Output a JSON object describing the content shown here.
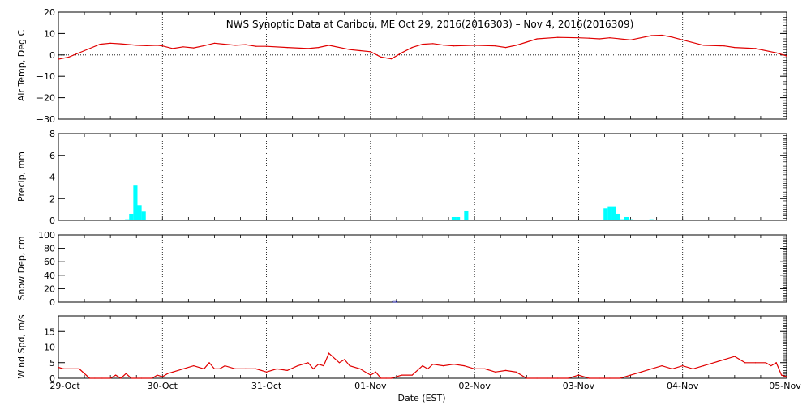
{
  "chart_data": [
    {
      "type": "line",
      "title": "NWS Synoptic Data at Caribou, ME   Oct 29, 2016(2016303) – Nov  4, 2016(2016309)",
      "ylabel": "Air Temp, Deg C",
      "ylim": [
        -30,
        20
      ],
      "yticks": [
        "20",
        "10",
        "0",
        "−10",
        "−20",
        "−30"
      ],
      "xlim": [
        0,
        7
      ],
      "grid": true,
      "x": [
        0,
        0.1,
        0.25,
        0.4,
        0.5,
        0.6,
        0.75,
        0.85,
        0.95,
        1.0,
        1.1,
        1.2,
        1.3,
        1.4,
        1.5,
        1.6,
        1.7,
        1.8,
        1.9,
        2.0,
        2.2,
        2.4,
        2.5,
        2.6,
        2.8,
        2.9,
        3.0,
        3.1,
        3.2,
        3.3,
        3.4,
        3.5,
        3.6,
        3.7,
        3.8,
        4.0,
        4.2,
        4.3,
        4.4,
        4.5,
        4.6,
        4.8,
        5.0,
        5.1,
        5.2,
        5.3,
        5.5,
        5.7,
        5.8,
        5.9,
        6.0,
        6.2,
        6.4,
        6.5,
        6.7,
        6.9,
        7.0
      ],
      "series": [
        {
          "color": "#e00000",
          "values": [
            -2,
            -1,
            2,
            5,
            5.5,
            5.2,
            4.5,
            4.3,
            4.5,
            4.2,
            3.0,
            3.8,
            3.3,
            4.3,
            5.5,
            5.0,
            4.5,
            4.8,
            4.0,
            4.0,
            3.5,
            3.0,
            3.5,
            4.5,
            2.5,
            2.0,
            1.5,
            -1.0,
            -1.8,
            1.0,
            3.5,
            5.0,
            5.3,
            4.6,
            4.2,
            4.5,
            4.2,
            3.5,
            4.5,
            6.0,
            7.5,
            8.2,
            8.0,
            7.8,
            7.5,
            8.0,
            7.0,
            9.0,
            9.2,
            8.3,
            7.0,
            4.5,
            4.2,
            3.5,
            3.0,
            1.0,
            -0.5
          ]
        }
      ]
    },
    {
      "type": "bar",
      "ylabel": "Precip, mm",
      "ylim": [
        0,
        8
      ],
      "yticks": [
        "8",
        "6",
        "4",
        "2",
        "0"
      ],
      "xlim": [
        0,
        7
      ],
      "grid": true,
      "bar_width": 0.04,
      "x": [
        0.66,
        0.7,
        0.74,
        0.78,
        0.82,
        3.8,
        3.84,
        3.92,
        5.26,
        5.3,
        5.34,
        5.38,
        5.42,
        5.46,
        5.5,
        5.54,
        5.58,
        5.62,
        5.66,
        5.7
      ],
      "series": [
        {
          "color": "#00ffff",
          "values": [
            0.1,
            0.6,
            3.2,
            1.4,
            0.8,
            0.3,
            0.3,
            0.9,
            1.1,
            1.3,
            1.3,
            0.6,
            0.1,
            0.3,
            0.1,
            0,
            0,
            0,
            0,
            0.1
          ]
        }
      ]
    },
    {
      "type": "bar",
      "ylabel": "Snow Dep, cm",
      "ylim": [
        0,
        100
      ],
      "yticks": [
        "100",
        "80",
        "60",
        "40",
        "20",
        "0"
      ],
      "xlim": [
        0,
        7
      ],
      "grid": true,
      "bar_width": 0.035,
      "x": [
        3.23
      ],
      "series": [
        {
          "color": "#00008b",
          "values": [
            2
          ]
        }
      ]
    },
    {
      "type": "line",
      "ylabel": "Wind Spd, m/s",
      "xlabel": "Date (EST)",
      "ylim": [
        0,
        20
      ],
      "yticks": [
        "15",
        "10",
        "5",
        "0"
      ],
      "xlim": [
        0,
        7
      ],
      "xticks": [
        "29-Oct",
        "30-Oct",
        "31-Oct",
        "01-Nov",
        "02-Nov",
        "03-Nov",
        "04-Nov",
        "05-Nov"
      ],
      "grid": true,
      "x": [
        0,
        0.05,
        0.2,
        0.3,
        0.35,
        0.42,
        0.5,
        0.55,
        0.6,
        0.65,
        0.7,
        0.8,
        0.9,
        0.95,
        1.0,
        1.05,
        1.1,
        1.2,
        1.3,
        1.4,
        1.45,
        1.5,
        1.55,
        1.6,
        1.7,
        1.8,
        1.9,
        2.0,
        2.1,
        2.2,
        2.3,
        2.4,
        2.45,
        2.5,
        2.55,
        2.6,
        2.7,
        2.75,
        2.8,
        2.9,
        3.0,
        3.05,
        3.1,
        3.15,
        3.2,
        3.3,
        3.4,
        3.5,
        3.55,
        3.6,
        3.7,
        3.8,
        3.9,
        4.0,
        4.1,
        4.2,
        4.3,
        4.4,
        4.5,
        4.6,
        4.7,
        4.8,
        4.9,
        5.0,
        5.1,
        5.2,
        5.3,
        5.4,
        5.5,
        5.6,
        5.7,
        5.8,
        5.9,
        6.0,
        6.1,
        6.2,
        6.3,
        6.4,
        6.5,
        6.6,
        6.7,
        6.8,
        6.85,
        6.9,
        6.95,
        7.0
      ],
      "series": [
        {
          "color": "#e00000",
          "values": [
            3.5,
            3,
            3,
            0,
            0,
            0,
            0,
            1,
            0,
            1.5,
            0,
            0,
            0,
            1,
            0.5,
            1.5,
            2,
            3,
            4,
            3,
            5,
            3,
            3,
            4,
            3,
            3,
            3,
            2,
            3,
            2.5,
            4,
            5,
            3,
            4.5,
            4,
            8,
            5,
            6,
            4,
            3,
            1,
            2,
            0,
            0,
            0,
            1,
            1,
            4,
            3,
            4.5,
            4,
            4.5,
            4,
            3,
            3,
            2,
            2.5,
            2,
            0,
            0,
            0,
            0,
            0,
            1,
            0,
            0,
            0,
            0,
            1,
            2,
            3,
            4,
            3,
            4,
            3,
            4,
            5,
            6,
            7,
            5,
            5,
            5,
            4,
            5,
            1,
            0.5
          ]
        }
      ]
    }
  ]
}
